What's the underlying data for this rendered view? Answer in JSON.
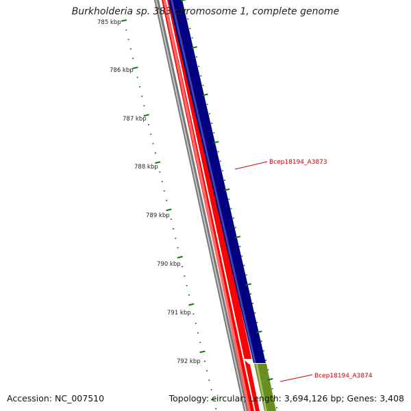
{
  "title": "Burkholderia sp. 383 chromosome 1, complete genome",
  "footer": {
    "accession": "Accession: NC_007510",
    "summary": "Topology: circular; Length: 3,694,126 bp; Genes: 3,408"
  },
  "ruler": {
    "labels": [
      "785 kbp",
      "786 kbp",
      "787 kbp",
      "788 kbp",
      "789 kbp",
      "790 kbp",
      "791 kbp",
      "792 kbp"
    ]
  },
  "gene_labels": [
    {
      "text": "Bcep18194_A3873",
      "color": "#cc0000"
    },
    {
      "text": "Bcep18194_A3874",
      "color": "#cc0000"
    }
  ],
  "colors": {
    "forward_track": "#000080",
    "reverse_track": "#ff0000",
    "backbone": "#666666",
    "tick": "#0a7a0a",
    "next_gene": "#6b8e23",
    "label_line": "#cc0000"
  }
}
